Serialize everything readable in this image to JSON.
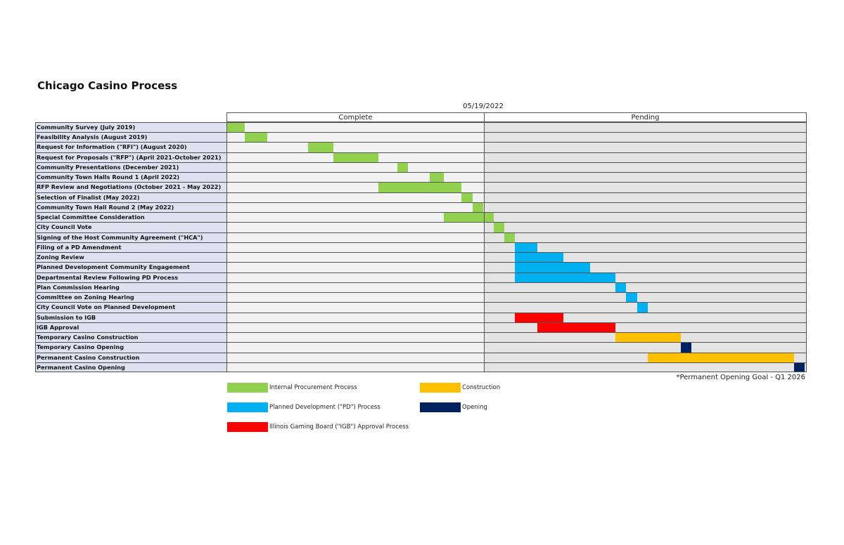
{
  "title": "Chicago Casino Process",
  "date_label": "05/19/2022",
  "footnote": "*Permanent Opening Goal - Q1 2026",
  "colors": {
    "procurement": "#92d050",
    "pd": "#00b0f0",
    "igb": "#ff0000",
    "construction": "#ffc000",
    "opening": "#002060"
  },
  "legend": [
    {
      "label": "Internal Procurement Process",
      "color_key": "procurement"
    },
    {
      "label": "Construction",
      "color_key": "construction"
    },
    {
      "label": "Planned Development (\"PD\") Process",
      "color_key": "pd"
    },
    {
      "label": "Opening",
      "color_key": "opening"
    },
    {
      "label": "Illinois Gaming Board (\"IGB\") Approval Process",
      "color_key": "igb"
    }
  ],
  "chart_data": {
    "type": "gantt",
    "title": "Chicago Casino Process",
    "status_date": "05/19/2022",
    "sections": [
      "Complete",
      "Pending"
    ],
    "tasks": [
      {
        "name": "Community Survey (July 2019)",
        "category": "procurement",
        "start": 0.0,
        "end": 1.7
      },
      {
        "name": "Feasibility Analysis (August 2019)",
        "category": "procurement",
        "start": 1.7,
        "end": 3.8
      },
      {
        "name": "Request for Information (\"RFI\") (August 2020)",
        "category": "procurement",
        "start": 7.6,
        "end": 10.0
      },
      {
        "name": "Request for Proposals (\"RFP\") (April 2021-October 2021)",
        "category": "procurement",
        "start": 10.0,
        "end": 14.2
      },
      {
        "name": "Community Presentations (December 2021)",
        "category": "procurement",
        "start": 16.0,
        "end": 17.0
      },
      {
        "name": "Community Town Halls Round 1 (April 2022)",
        "category": "procurement",
        "start": 19.0,
        "end": 20.3
      },
      {
        "name": "RFP Review and Negotiations (October 2021 - May 2022)",
        "category": "procurement",
        "start": 14.2,
        "end": 22.0
      },
      {
        "name": "Selection of Finalist (May 2022)",
        "category": "procurement",
        "start": 22.0,
        "end": 23.0
      },
      {
        "name": "Community Town Hall Round 2 (May 2022)",
        "category": "procurement",
        "start": 23.0,
        "end": 24.0
      },
      {
        "name": "Special Committee Consideration",
        "category": "procurement",
        "start": 20.3,
        "end": 25.0
      },
      {
        "name": "City Council Vote",
        "category": "procurement",
        "start": 25.0,
        "end": 26.0
      },
      {
        "name": "Signing of the Host Community Agreement (\"HCA\")",
        "category": "procurement",
        "start": 26.0,
        "end": 27.0
      },
      {
        "name": "Filing of a PD Amendment",
        "category": "pd",
        "start": 27.0,
        "end": 29.1
      },
      {
        "name": "Zoning Review",
        "category": "pd",
        "start": 27.0,
        "end": 31.5
      },
      {
        "name": "Planned Development Community Engagement",
        "category": "pd",
        "start": 27.0,
        "end": 34.0
      },
      {
        "name": "Departmental Review Following PD Process",
        "category": "pd",
        "start": 27.0,
        "end": 36.4
      },
      {
        "name": "Plan Commission Hearing",
        "category": "pd",
        "start": 36.4,
        "end": 37.4
      },
      {
        "name": "Committee on Zoning Hearing",
        "category": "pd",
        "start": 37.4,
        "end": 38.4
      },
      {
        "name": "City Council Vote on Planned Development",
        "category": "pd",
        "start": 38.4,
        "end": 39.4
      },
      {
        "name": "Submission to IGB",
        "category": "igb",
        "start": 27.0,
        "end": 31.5
      },
      {
        "name": "IGB Approval",
        "category": "igb",
        "start": 29.1,
        "end": 36.4
      },
      {
        "name": "Temporary Casino Construction",
        "category": "construction",
        "start": 36.4,
        "end": 42.5
      },
      {
        "name": "Temporary Casino Opening",
        "category": "opening",
        "start": 42.5,
        "end": 43.5
      },
      {
        "name": "Permanent Casino Construction",
        "category": "construction",
        "start": 39.4,
        "end": 53.1
      },
      {
        "name": "Permanent Casino Opening",
        "category": "opening",
        "start": 53.1,
        "end": 54.1
      }
    ]
  }
}
